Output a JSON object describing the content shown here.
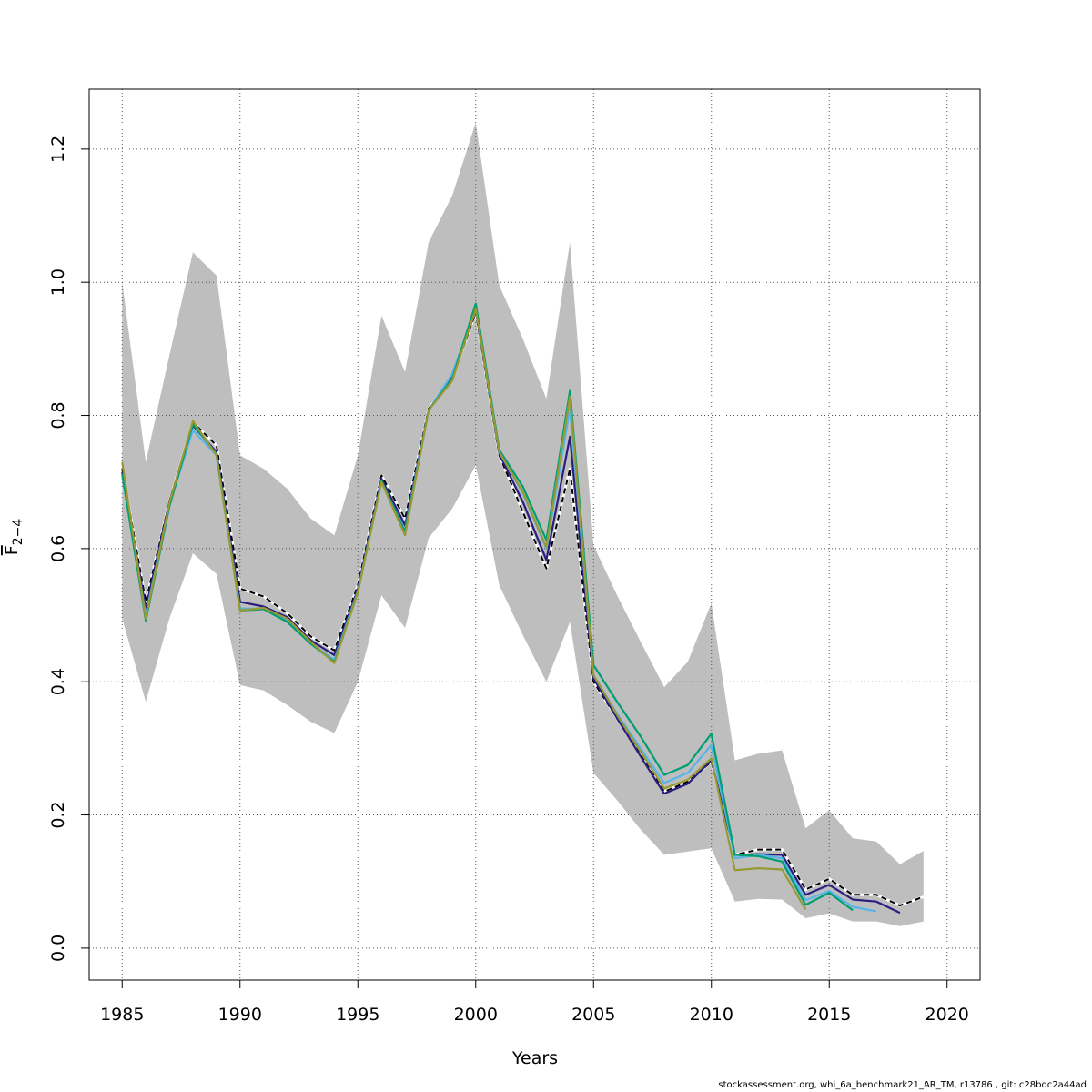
{
  "chart_data": {
    "type": "line",
    "title": "",
    "xlabel": "Years",
    "ylabel": "F",
    "ylabel_subscript": "2−4",
    "xlim": [
      1983.6,
      2021.4
    ],
    "ylim": [
      -0.048,
      1.29
    ],
    "x_ticks": [
      1985,
      1990,
      1995,
      2000,
      2005,
      2010,
      2015,
      2020
    ],
    "x_tick_labels": [
      "1985",
      "1990",
      "1995",
      "2000",
      "2005",
      "2010",
      "2015",
      "2020"
    ],
    "y_ticks": [
      0,
      0.2,
      0.4,
      0.6,
      0.8,
      1.0,
      1.2
    ],
    "y_tick_labels": [
      "0.0",
      "0.2",
      "0.4",
      "0.6",
      "0.8",
      "1.0",
      "1.2"
    ],
    "grid": true,
    "confidence_band": {
      "color": "#bebebe",
      "x": [
        1985,
        1986,
        1987,
        1988,
        1989,
        1990,
        1991,
        1992,
        1993,
        1994,
        1995,
        1996,
        1997,
        1998,
        1999,
        2000,
        2001,
        2002,
        2003,
        2004,
        2005,
        2006,
        2007,
        2008,
        2009,
        2010,
        2011,
        2012,
        2013,
        2014,
        2015,
        2016,
        2017,
        2018,
        2019
      ],
      "upper": [
        1.0,
        0.73,
        0.89,
        1.045,
        1.01,
        0.74,
        0.72,
        0.69,
        0.645,
        0.62,
        0.74,
        0.95,
        0.865,
        1.06,
        1.13,
        1.24,
        0.995,
        0.915,
        0.825,
        1.06,
        0.605,
        0.53,
        0.46,
        0.392,
        0.43,
        0.518,
        0.282,
        0.292,
        0.297,
        0.18,
        0.207,
        0.165,
        0.16,
        0.126,
        0.146
      ],
      "lower": [
        0.495,
        0.37,
        0.495,
        0.593,
        0.562,
        0.395,
        0.387,
        0.365,
        0.34,
        0.323,
        0.4,
        0.53,
        0.481,
        0.616,
        0.66,
        0.725,
        0.545,
        0.47,
        0.4,
        0.49,
        0.263,
        0.222,
        0.178,
        0.14,
        0.145,
        0.15,
        0.07,
        0.074,
        0.073,
        0.045,
        0.052,
        0.04,
        0.04,
        0.033,
        0.04
      ]
    },
    "series": [
      {
        "color": "#000000",
        "dashed": true,
        "x": [
          1985,
          1986,
          1987,
          1988,
          1989,
          1990,
          1991,
          1992,
          1993,
          1994,
          1995,
          1996,
          1997,
          1998,
          1999,
          2000,
          2001,
          2002,
          2003,
          2004,
          2005,
          2006,
          2007,
          2008,
          2009,
          2010,
          2011,
          2012,
          2013,
          2014,
          2015,
          2016,
          2017,
          2018,
          2019
        ],
        "values": [
          0.72,
          0.52,
          0.67,
          0.79,
          0.755,
          0.54,
          0.528,
          0.503,
          0.468,
          0.447,
          0.545,
          0.71,
          0.645,
          0.81,
          0.855,
          0.955,
          0.74,
          0.655,
          0.57,
          0.72,
          0.4,
          0.345,
          0.29,
          0.235,
          0.25,
          0.28,
          0.14,
          0.148,
          0.148,
          0.088,
          0.104,
          0.08,
          0.08,
          0.064,
          0.077
        ]
      },
      {
        "color": "#2b1e80",
        "dashed": false,
        "x": [
          1985,
          1986,
          1987,
          1988,
          1989,
          1990,
          1991,
          1992,
          1993,
          1994,
          1995,
          1996,
          1997,
          1998,
          1999,
          2000,
          2001,
          2002,
          2003,
          2004,
          2005,
          2006,
          2007,
          2008,
          2009,
          2010,
          2011,
          2012,
          2013,
          2014,
          2015,
          2016,
          2017,
          2018
        ],
        "values": [
          0.715,
          0.51,
          0.67,
          0.785,
          0.745,
          0.52,
          0.513,
          0.497,
          0.462,
          0.44,
          0.54,
          0.705,
          0.635,
          0.808,
          0.857,
          0.958,
          0.742,
          0.67,
          0.583,
          0.768,
          0.405,
          0.345,
          0.288,
          0.232,
          0.247,
          0.282,
          0.14,
          0.141,
          0.14,
          0.08,
          0.095,
          0.073,
          0.07,
          0.053
        ]
      },
      {
        "color": "#56b4e9",
        "dashed": false,
        "x": [
          1985,
          1986,
          1987,
          1988,
          1989,
          1990,
          1991,
          1992,
          1993,
          1994,
          1995,
          1996,
          1997,
          1998,
          1999,
          2000,
          2001,
          2002,
          2003,
          2004,
          2005,
          2006,
          2007,
          2008,
          2009,
          2010,
          2011,
          2012,
          2013,
          2014,
          2015,
          2016,
          2017
        ],
        "values": [
          0.71,
          0.5,
          0.665,
          0.778,
          0.74,
          0.51,
          0.51,
          0.492,
          0.458,
          0.433,
          0.537,
          0.7,
          0.628,
          0.808,
          0.862,
          0.962,
          0.745,
          0.683,
          0.6,
          0.81,
          0.41,
          0.352,
          0.3,
          0.248,
          0.263,
          0.305,
          0.135,
          0.14,
          0.135,
          0.072,
          0.086,
          0.062,
          0.055
        ]
      },
      {
        "color": "#009e73",
        "dashed": false,
        "x": [
          1985,
          1986,
          1987,
          1988,
          1989,
          1990,
          1991,
          1992,
          1993,
          1994,
          1995,
          1996,
          1997,
          1998,
          1999,
          2000,
          2001,
          2002,
          2003,
          2004,
          2005,
          2006,
          2007,
          2008,
          2009,
          2010,
          2011,
          2012,
          2013,
          2014,
          2015,
          2016
        ],
        "values": [
          0.712,
          0.492,
          0.663,
          0.787,
          0.742,
          0.507,
          0.509,
          0.49,
          0.457,
          0.43,
          0.535,
          0.702,
          0.625,
          0.808,
          0.855,
          0.968,
          0.748,
          0.693,
          0.613,
          0.837,
          0.425,
          0.37,
          0.318,
          0.26,
          0.275,
          0.322,
          0.14,
          0.138,
          0.13,
          0.065,
          0.083,
          0.057
        ]
      },
      {
        "color": "#999933",
        "dashed": false,
        "x": [
          1985,
          1986,
          1987,
          1988,
          1989,
          1990,
          1991,
          1992,
          1993,
          1994,
          1995,
          1996,
          1997,
          1998,
          1999,
          2000,
          2001,
          2002,
          2003,
          2004,
          2005,
          2006,
          2007,
          2008,
          2009,
          2010,
          2011,
          2012,
          2013,
          2014
        ],
        "values": [
          0.73,
          0.495,
          0.668,
          0.792,
          0.74,
          0.507,
          0.511,
          0.495,
          0.46,
          0.428,
          0.535,
          0.7,
          0.62,
          0.808,
          0.852,
          0.96,
          0.745,
          0.685,
          0.602,
          0.828,
          0.41,
          0.35,
          0.295,
          0.24,
          0.253,
          0.285,
          0.117,
          0.12,
          0.118,
          0.058
        ]
      }
    ]
  },
  "footer_note": "stockassessment.org, whi_6a_benchmark21_AR_TM, r13786 , git: c28bdc2a44ad"
}
